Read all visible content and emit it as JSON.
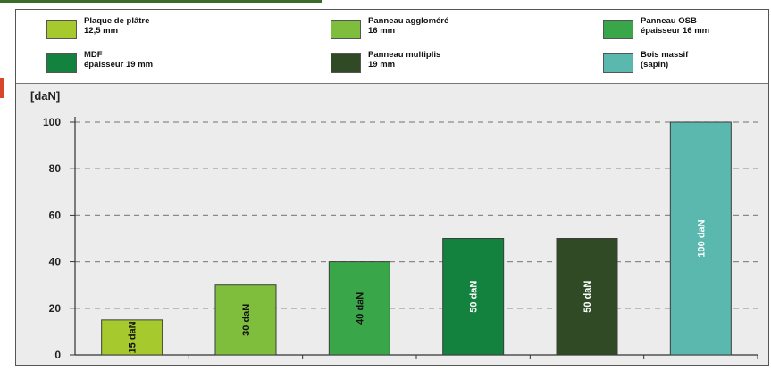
{
  "legend": [
    {
      "label": "Plaque de plâtre\n12,5 mm",
      "color": "#a6c92e"
    },
    {
      "label": "Panneau aggloméré\n16 mm",
      "color": "#7fbd3c"
    },
    {
      "label": "Panneau OSB\népaisseur 16 mm",
      "color": "#3aa64a"
    },
    {
      "label": "MDF\népaisseur 19 mm",
      "color": "#13823f"
    },
    {
      "label": "Panneau multiplis\n19 mm",
      "color": "#2f4a24"
    },
    {
      "label": "Bois massif\n(sapin)",
      "color": "#5ab8ae"
    }
  ],
  "chart_data": {
    "type": "bar",
    "ylabel": "[daN]",
    "ylim": [
      0,
      100
    ],
    "yticks": [
      0,
      20,
      40,
      60,
      80,
      100
    ],
    "grid": true,
    "legend_position": "top",
    "categories": [
      "Plaque de plâtre\n12,5 mm",
      "Panneau aggloméré\n16 mm",
      "Panneau OSB\népaisseur 16 mm",
      "MDF\népaisseur 19 mm",
      "Panneau multiplis\n19 mm",
      "Bois massif\n(sapin)"
    ],
    "values": [
      15,
      30,
      40,
      50,
      50,
      100
    ],
    "data_labels": [
      "15 daN",
      "30 daN",
      "40 daN",
      "50 daN",
      "50 daN",
      "100 daN"
    ],
    "colors": [
      "#a6c92e",
      "#7fbd3c",
      "#3aa64a",
      "#13823f",
      "#2f4a24",
      "#5ab8ae"
    ]
  }
}
